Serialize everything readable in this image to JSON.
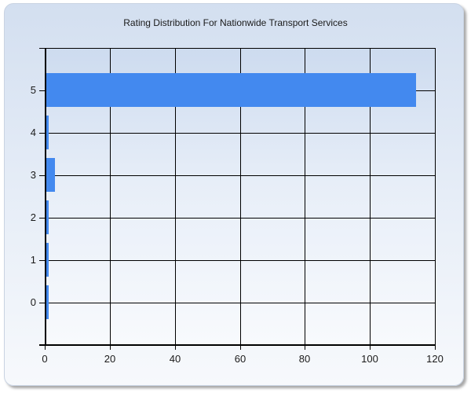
{
  "chart_data": {
    "type": "bar",
    "orientation": "horizontal",
    "title": "Rating Distribution For Nationwide Transport Services",
    "xlabel": "",
    "ylabel": "",
    "categories": [
      "0",
      "1",
      "2",
      "3",
      "4",
      "5"
    ],
    "values": [
      1,
      1,
      1,
      3,
      1,
      114
    ],
    "xlim": [
      0,
      120
    ],
    "ylim": [
      -1,
      6
    ],
    "x_ticks": [
      "0",
      "20",
      "40",
      "60",
      "80",
      "100",
      "120"
    ],
    "y_ticks": [
      "0",
      "1",
      "2",
      "3",
      "4",
      "5"
    ],
    "grid": true,
    "legend": null,
    "bar_color": "#4389ef"
  }
}
